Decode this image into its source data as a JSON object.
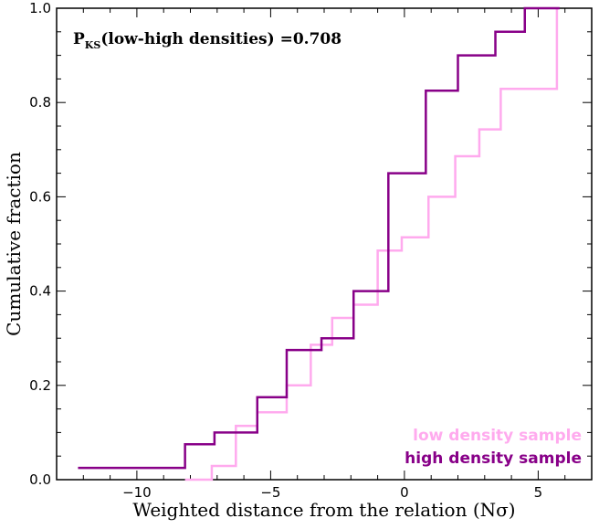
{
  "chart_data": {
    "type": "line",
    "step": true,
    "title": "",
    "xlabel": "Weighted distance from the relation (Nσ)",
    "ylabel": "Cumulative fraction",
    "xlim": [
      -13,
      7
    ],
    "ylim": [
      0,
      1.0
    ],
    "xticks": [
      -10,
      -5,
      0,
      5
    ],
    "xtick_labels": [
      "−10",
      "−5",
      "0",
      "5"
    ],
    "yticks": [
      0.0,
      0.2,
      0.4,
      0.6,
      0.8,
      1.0
    ],
    "ytick_labels": [
      "0.0",
      "0.2",
      "0.4",
      "0.6",
      "0.8",
      "1.0"
    ],
    "annotation": {
      "prefix": "P",
      "subscript": "KS",
      "text": "(low-high densities) =0.708"
    },
    "legend_position": "bottom-right",
    "series": [
      {
        "name": "low density sample",
        "color": "#ffaaee",
        "x": [
          -8.2,
          -7.2,
          -6.3,
          -5.5,
          -4.4,
          -3.5,
          -2.7,
          -1.9,
          -1.0,
          -0.1,
          0.9,
          1.9,
          2.8,
          3.6,
          5.7
        ],
        "y": [
          0.0,
          0.029,
          0.114,
          0.143,
          0.2,
          0.286,
          0.343,
          0.371,
          0.486,
          0.514,
          0.6,
          0.686,
          0.743,
          0.829,
          1.0
        ]
      },
      {
        "name": "high density sample",
        "color": "#880088",
        "x": [
          -12.2,
          -8.2,
          -7.1,
          -6.3,
          -5.5,
          -4.4,
          -3.1,
          -1.9,
          -0.6,
          0.8,
          2.0,
          3.4,
          4.5,
          5.8
        ],
        "y": [
          0.025,
          0.075,
          0.1,
          0.1,
          0.175,
          0.275,
          0.3,
          0.4,
          0.65,
          0.825,
          0.9,
          0.95,
          1.0,
          1.0
        ]
      }
    ]
  }
}
